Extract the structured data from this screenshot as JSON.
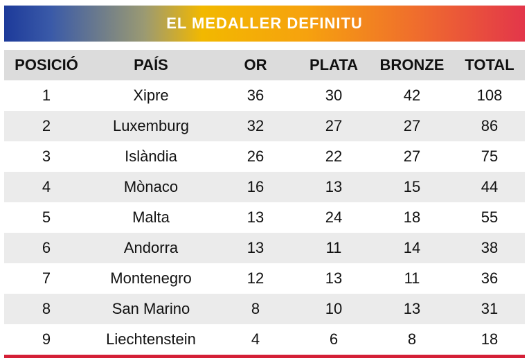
{
  "title": "EL MEDALLER DEFINITU",
  "headers": [
    "POSICIÓ",
    "PAÍS",
    "OR",
    "PLATA",
    "BRONZE",
    "TOTAL"
  ],
  "rows": [
    [
      "1",
      "Xipre",
      "36",
      "30",
      "42",
      "108"
    ],
    [
      "2",
      "Luxemburg",
      "32",
      "27",
      "27",
      "86"
    ],
    [
      "3",
      "Islàndia",
      "26",
      "22",
      "27",
      "75"
    ],
    [
      "4",
      "Mònaco",
      "16",
      "13",
      "15",
      "44"
    ],
    [
      "5",
      "Malta",
      "13",
      "24",
      "18",
      "55"
    ],
    [
      "6",
      "Andorra",
      "13",
      "11",
      "14",
      "38"
    ],
    [
      "7",
      "Montenegro",
      "12",
      "13",
      "11",
      "36"
    ],
    [
      "8",
      "San Marino",
      "8",
      "10",
      "13",
      "31"
    ],
    [
      "9",
      "Liechtenstein",
      "4",
      "6",
      "8",
      "18"
    ]
  ],
  "colors": {
    "banner_gradient": [
      "#1d3a9a",
      "#f2b800",
      "#e3364a"
    ],
    "header_bg": "#dcdcdc",
    "stripe_bg": "#ebebeb",
    "bottom_rule": "#d41f36"
  }
}
